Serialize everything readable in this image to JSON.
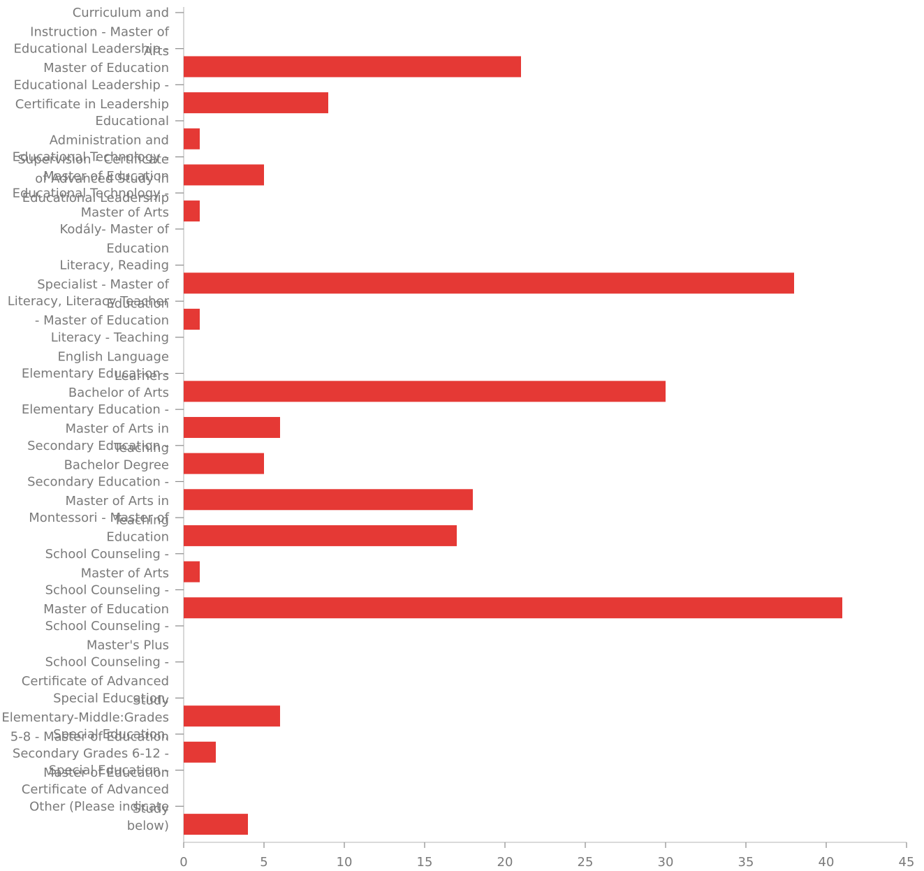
{
  "chart_data": {
    "type": "bar",
    "orientation": "horizontal",
    "categories": [
      "Curriculum and Instruction - Master of Arts",
      "Educational Leadership - Master of Education",
      "Educational Leadership - Certificate in Leadership",
      "Educational Administration and Supervision - Certificate of Advanced Study in Educational Leadership",
      "Educational Technology - Master of Education",
      "Educational Technology - Master of Arts",
      "Kodály- Master of Education",
      "Literacy, Reading Specialist - Master of Education",
      "Literacy, Literacy Teacher - Master of Education",
      "Literacy - Teaching English Language Learners",
      "Elementary Education - Bachelor of Arts",
      "Elementary Education - Master of Arts in Teaching",
      "Secondary Education - Bachelor Degree",
      "Secondary Education - Master of Arts in Teaching",
      "Montessori - Master of Education",
      "School Counseling - Master of Arts",
      "School Counseling - Master of Education",
      "School Counseling - Master's Plus",
      "School Counseling - Certificate of Advanced Study",
      "Special Education, Elementary-Middle:Grades 5-8 - Master of Education",
      "Special Education, Secondary Grades 6-12 - Master of Education",
      "Special Education - Certificate of Advanced Study",
      "Other (Please indicate below)"
    ],
    "values": [
      0,
      21,
      9,
      1,
      5,
      1,
      0,
      38,
      1,
      0,
      30,
      6,
      5,
      18,
      17,
      1,
      41,
      0,
      0,
      6,
      2,
      0,
      4
    ],
    "xlim": [
      0,
      45
    ],
    "xticks": [
      0,
      5,
      10,
      15,
      20,
      25,
      30,
      35,
      40,
      45
    ],
    "bar_color": "#e53935",
    "axis_color": "#bdbdbd",
    "label_color": "#7a7a7a",
    "grid": false
  }
}
